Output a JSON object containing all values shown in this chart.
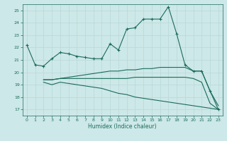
{
  "bg_color": "#cde8e8",
  "grid_color": "#b8d8d8",
  "line_color": "#1a6b5a",
  "line_lw": 0.8,
  "marker": "+",
  "markersize": 3,
  "markerwidth": 0.8,
  "xlabel": "Humidex (Indice chaleur)",
  "xlim": [
    -0.5,
    23.5
  ],
  "ylim": [
    16.5,
    25.5
  ],
  "yticks": [
    17,
    18,
    19,
    20,
    21,
    22,
    23,
    24,
    25
  ],
  "xticks": [
    0,
    1,
    2,
    3,
    4,
    5,
    6,
    7,
    8,
    9,
    10,
    11,
    12,
    13,
    14,
    15,
    16,
    17,
    18,
    19,
    20,
    21,
    22,
    23
  ],
  "series1_x": [
    0,
    1,
    2,
    3,
    4,
    5,
    6,
    7,
    8,
    9,
    10,
    11,
    12,
    13,
    14,
    15,
    16,
    17,
    18,
    19,
    20,
    21,
    22,
    23
  ],
  "series1_y": [
    22.2,
    20.6,
    20.5,
    21.1,
    21.6,
    21.5,
    21.3,
    21.2,
    21.1,
    21.1,
    22.3,
    21.8,
    23.5,
    23.6,
    24.3,
    24.3,
    24.3,
    25.3,
    23.1,
    20.6,
    20.1,
    20.1,
    18.5,
    17.0
  ],
  "series2_x": [
    2,
    3,
    4,
    5,
    6,
    7,
    8,
    9,
    10,
    11,
    12,
    13,
    14,
    15,
    16,
    17,
    18,
    19,
    20,
    21,
    22,
    23
  ],
  "series2_y": [
    19.4,
    19.4,
    19.5,
    19.6,
    19.7,
    19.8,
    19.9,
    20.0,
    20.1,
    20.1,
    20.2,
    20.2,
    20.3,
    20.3,
    20.4,
    20.4,
    20.4,
    20.4,
    20.1,
    20.1,
    18.5,
    17.3
  ],
  "series3_x": [
    2,
    3,
    4,
    5,
    6,
    7,
    8,
    9,
    10,
    11,
    12,
    13,
    14,
    15,
    16,
    17,
    18,
    19,
    20,
    21,
    22,
    23
  ],
  "series3_y": [
    19.4,
    19.4,
    19.5,
    19.5,
    19.5,
    19.5,
    19.5,
    19.5,
    19.5,
    19.5,
    19.5,
    19.6,
    19.6,
    19.6,
    19.6,
    19.6,
    19.6,
    19.6,
    19.5,
    19.2,
    17.5,
    17.0
  ],
  "series4_x": [
    2,
    3,
    4,
    5,
    6,
    7,
    8,
    9,
    10,
    11,
    12,
    13,
    14,
    15,
    16,
    17,
    18,
    19,
    20,
    21,
    22,
    23
  ],
  "series4_y": [
    19.2,
    19.0,
    19.2,
    19.1,
    19.0,
    18.9,
    18.8,
    18.7,
    18.5,
    18.3,
    18.2,
    18.0,
    17.9,
    17.8,
    17.7,
    17.6,
    17.5,
    17.4,
    17.3,
    17.2,
    17.1,
    17.0
  ]
}
